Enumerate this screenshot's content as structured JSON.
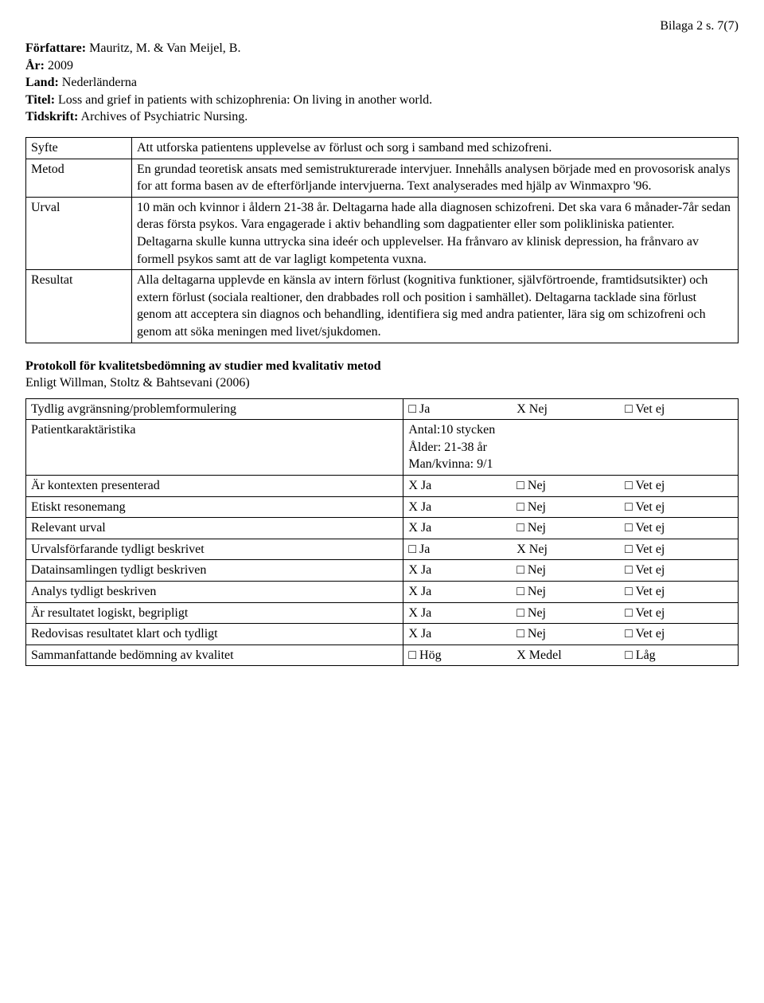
{
  "header_right": "Bilaga 2 s. 7(7)",
  "meta": {
    "author_label": "Författare:",
    "author_value": " Mauritz, M. & Van Meijel, B.",
    "year_label": "År:",
    "year_value": " 2009",
    "country_label": "Land:",
    "country_value": " Nederländerna",
    "title_label": "Titel:",
    "title_value": " Loss and grief in patients with schizophrenia: On living in another world.",
    "journal_label": "Tidskrift:",
    "journal_value": " Archives of Psychiatric Nursing."
  },
  "rows": [
    {
      "label": "Syfte",
      "text": "Att utforska patientens upplevelse av förlust och sorg i samband med schizofreni."
    },
    {
      "label": "Metod",
      "text": "En grundad teoretisk ansats med semistrukturerade intervjuer. Innehålls analysen började med en provosorisk analys for att forma basen av de efterförljande intervjuerna. Text analyserades med hjälp av Winmaxpro '96."
    },
    {
      "label": "Urval",
      "text": "10 män och kvinnor i åldern 21-38 år. Deltagarna hade alla diagnosen schizofreni. Det ska vara 6 månader-7år sedan deras första psykos. Vara engagerade i aktiv behandling som dagpatienter eller som polikliniska patienter. Deltagarna skulle kunna uttrycka sina ideér och upplevelser. Ha frånvaro av klinisk depression, ha frånvaro av formell psykos samt att de var lagligt kompetenta vuxna."
    },
    {
      "label": "Resultat",
      "text": "Alla deltagarna upplevde en känsla av intern förlust (kognitiva funktioner, självförtroende, framtidsutsikter) och extern förlust (sociala realtioner, den drabbades roll och position i samhället). Deltagarna tacklade sina förlust genom att acceptera sin diagnos och behandling, identifiera sig med andra patienter, lära sig om schizofreni och genom att söka meningen med livet/sjukdomen."
    }
  ],
  "protokoll_bold": "Protokoll för kvalitetsbedömning av studier med kvalitativ metod",
  "protokoll_sub": "Enligt Willman, Stoltz & Bahtsevani (2006)",
  "assessment": [
    {
      "q": "Tydlig avgränsning/problemformulering",
      "opts": [
        "□ Ja",
        "X Nej",
        "□ Vet ej"
      ]
    },
    {
      "q": "Patientkaraktäristika",
      "multiline": [
        "Antal:10 stycken",
        "Ålder: 21-38 år",
        "Man/kvinna: 9/1"
      ]
    },
    {
      "q": "Är kontexten presenterad",
      "opts": [
        "X Ja",
        "□ Nej",
        "□ Vet ej"
      ]
    },
    {
      "q": "Etiskt resonemang",
      "opts": [
        "X Ja",
        "□ Nej",
        "□ Vet ej"
      ]
    },
    {
      "q": "Relevant urval",
      "opts": [
        "X Ja",
        "□ Nej",
        "□ Vet ej"
      ]
    },
    {
      "q": "Urvalsförfarande tydligt beskrivet",
      "opts": [
        "□ Ja",
        "X Nej",
        "□ Vet ej"
      ]
    },
    {
      "q": "Datainsamlingen tydligt beskriven",
      "opts": [
        "X Ja",
        "□ Nej",
        "□ Vet ej"
      ]
    },
    {
      "q": "Analys tydligt beskriven",
      "opts": [
        "X Ja",
        "□ Nej",
        "□ Vet ej"
      ]
    },
    {
      "q": "Är resultatet logiskt, begripligt",
      "opts": [
        "X Ja",
        "□ Nej",
        "□ Vet ej"
      ]
    },
    {
      "q": "Redovisas resultatet klart och tydligt",
      "opts": [
        "X Ja",
        "□ Nej",
        "□ Vet ej"
      ]
    },
    {
      "q": "Sammanfattande bedömning av kvalitet",
      "opts": [
        "□ Hög",
        "X Medel",
        "□ Låg"
      ]
    }
  ]
}
